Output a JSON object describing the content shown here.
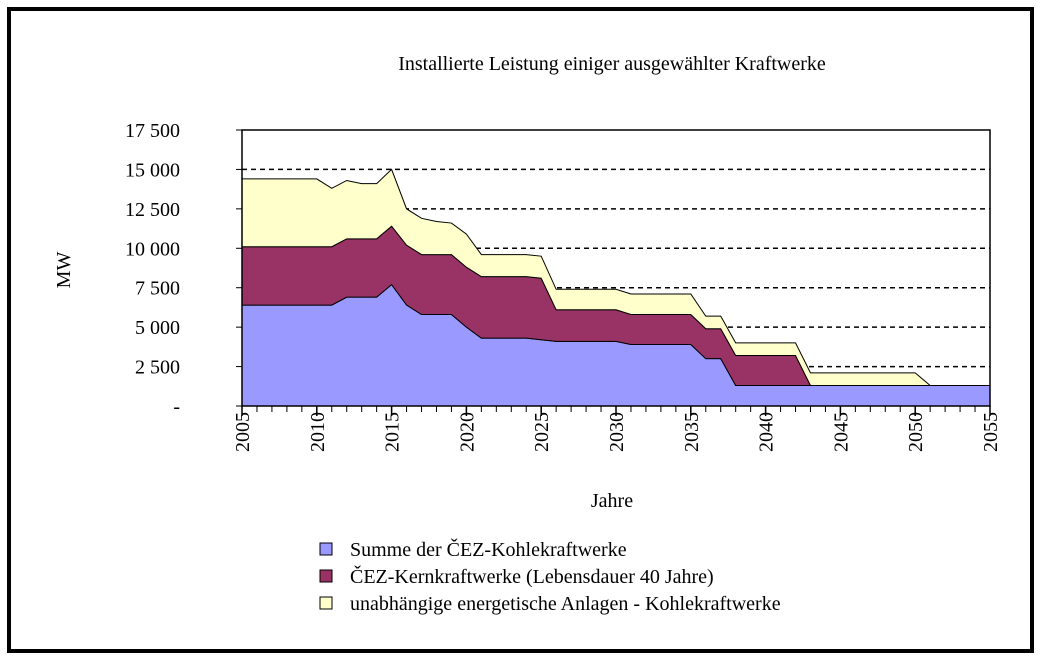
{
  "chart_data": {
    "type": "stacked_area",
    "title": "Installierte Leistung einiger ausgewählter Kraftwerke",
    "x_label": "Jahre",
    "y_label": "MW",
    "x": [
      2005,
      2006,
      2007,
      2008,
      2009,
      2010,
      2011,
      2012,
      2013,
      2014,
      2015,
      2016,
      2017,
      2018,
      2019,
      2020,
      2021,
      2022,
      2023,
      2024,
      2025,
      2026,
      2027,
      2028,
      2029,
      2030,
      2031,
      2032,
      2033,
      2034,
      2035,
      2036,
      2037,
      2038,
      2039,
      2040,
      2041,
      2042,
      2043,
      2044,
      2045,
      2046,
      2047,
      2048,
      2049,
      2050,
      2051,
      2052,
      2053,
      2054,
      2055
    ],
    "series": [
      {
        "name": "Summe der ČEZ-Kohlekraftwerke",
        "color": "#9999ff",
        "values": [
          6400,
          6400,
          6400,
          6400,
          6400,
          6400,
          6400,
          6900,
          6900,
          6900,
          7700,
          6400,
          5800,
          5800,
          5800,
          5000,
          4300,
          4300,
          4300,
          4300,
          4200,
          4100,
          4100,
          4100,
          4100,
          4100,
          3900,
          3900,
          3900,
          3900,
          3900,
          3000,
          3000,
          1300,
          1300,
          1300,
          1300,
          1300,
          1300,
          1300,
          1300,
          1300,
          1300,
          1300,
          1300,
          1300,
          1300,
          1300,
          1300,
          1300,
          1300
        ]
      },
      {
        "name": "ČEZ-Kernkraftwerke (Lebensdauer 40 Jahre)",
        "color": "#993366",
        "values": [
          3700,
          3700,
          3700,
          3700,
          3700,
          3700,
          3700,
          3700,
          3700,
          3700,
          3700,
          3800,
          3800,
          3800,
          3800,
          3800,
          3900,
          3900,
          3900,
          3900,
          3900,
          2000,
          2000,
          2000,
          2000,
          2000,
          1900,
          1900,
          1900,
          1900,
          1900,
          1900,
          1900,
          1900,
          1900,
          1900,
          1900,
          1900,
          0,
          0,
          0,
          0,
          0,
          0,
          0,
          0,
          0,
          0,
          0,
          0,
          0
        ]
      },
      {
        "name": "unabhängige energetische Anlagen - Kohlekraftwerke",
        "color": "#ffffcc",
        "values": [
          4300,
          4300,
          4300,
          4300,
          4300,
          4300,
          3700,
          3700,
          3500,
          3500,
          3600,
          2300,
          2300,
          2100,
          2000,
          2100,
          1400,
          1400,
          1400,
          1400,
          1400,
          1300,
          1300,
          1300,
          1300,
          1300,
          1300,
          1300,
          1300,
          1300,
          1300,
          800,
          800,
          800,
          800,
          800,
          800,
          800,
          800,
          800,
          800,
          800,
          800,
          800,
          800,
          800,
          0,
          0,
          0,
          0,
          0
        ]
      }
    ],
    "xlim": [
      2005,
      2055
    ],
    "xticks": [
      2005,
      2010,
      2015,
      2020,
      2025,
      2030,
      2035,
      2040,
      2045,
      2050,
      2055
    ],
    "ylim": [
      0,
      17500
    ],
    "yticks": [
      {
        "value": 0,
        "label": "-"
      },
      {
        "value": 2500,
        "label": "2 500"
      },
      {
        "value": 5000,
        "label": "5 000"
      },
      {
        "value": 7500,
        "label": "7 500"
      },
      {
        "value": 10000,
        "label": "10 000"
      },
      {
        "value": 12500,
        "label": "12 500"
      },
      {
        "value": 15000,
        "label": "15 000"
      },
      {
        "value": 17500,
        "label": "17 500"
      }
    ],
    "grid": true
  }
}
